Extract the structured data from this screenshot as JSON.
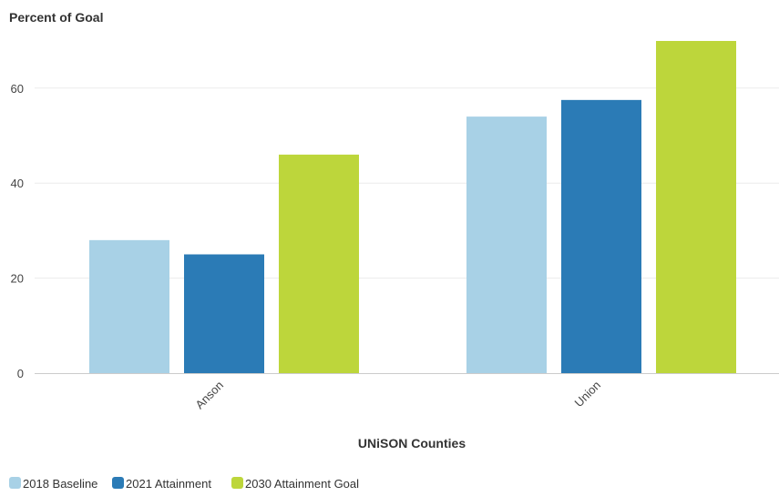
{
  "chart_data": {
    "type": "bar",
    "ylabel": "Percent of Goal",
    "xlabel": "UNiSON Counties",
    "categories": [
      "Anson",
      "Union"
    ],
    "series": [
      {
        "name": "2018 Baseline",
        "color": "#a8d1e6",
        "values": [
          28,
          54
        ]
      },
      {
        "name": "2021 Attainment",
        "color": "#2b7bb6",
        "values": [
          25,
          57.5
        ]
      },
      {
        "name": "2030 Attainment Goal",
        "color": "#bdd63b",
        "values": [
          46,
          70
        ]
      }
    ],
    "yticks": [
      0,
      20,
      40,
      60
    ],
    "ylim": [
      0,
      70
    ],
    "grid": true,
    "legend_position": "bottom-left"
  }
}
